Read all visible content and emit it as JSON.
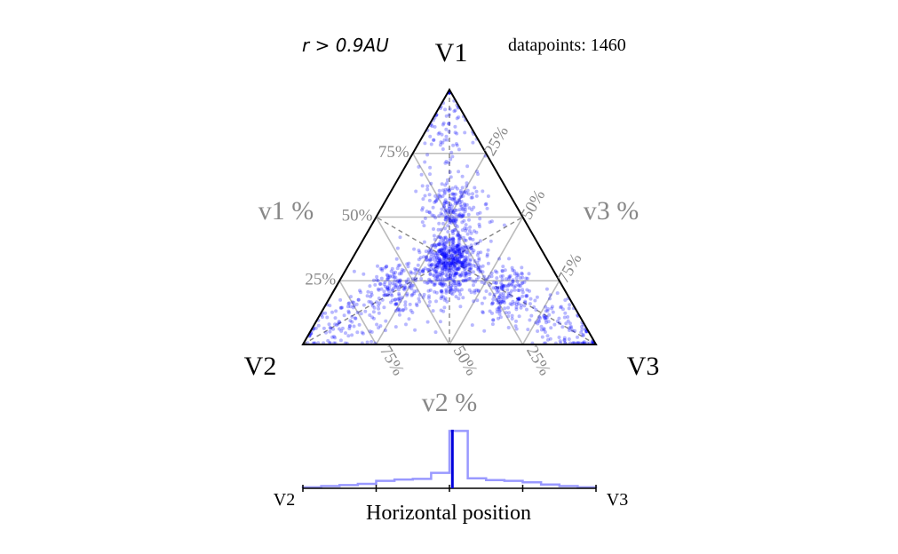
{
  "chart_data": [
    {
      "type": "scatter",
      "subtype": "ternary",
      "annotation_left": "r > 0.9AU",
      "annotation_right": "datapoints: 1460",
      "corner_labels": {
        "top": "V1",
        "left": "V2",
        "right": "V3"
      },
      "axis_labels": {
        "v1": "v1 %",
        "v2": "v2 %",
        "v3": "v3 %"
      },
      "tick_labels": {
        "v1": [
          "25%",
          "50%",
          "75%"
        ],
        "v2": [
          "75%",
          "50%",
          "25%"
        ],
        "v3": [
          "25%",
          "50%",
          "75%"
        ]
      },
      "grid": true,
      "point_color": "#0000ff",
      "n_points": 1460,
      "clusters": [
        {
          "v1": 0.33,
          "v2": 0.33,
          "v3": 0.34,
          "weight": 0.34
        },
        {
          "v1": 0.55,
          "v2": 0.22,
          "v3": 0.23,
          "weight": 0.14
        },
        {
          "v1": 0.85,
          "v2": 0.07,
          "v3": 0.08,
          "weight": 0.05
        },
        {
          "v1": 0.22,
          "v2": 0.58,
          "v3": 0.2,
          "weight": 0.12
        },
        {
          "v1": 0.08,
          "v2": 0.85,
          "v3": 0.07,
          "weight": 0.07
        },
        {
          "v1": 0.2,
          "v2": 0.2,
          "v3": 0.6,
          "weight": 0.14
        },
        {
          "v1": 0.05,
          "v2": 0.07,
          "v3": 0.88,
          "weight": 0.07
        },
        {
          "v1": 0.25,
          "v2": 0.4,
          "v3": 0.35,
          "weight": 0.07
        }
      ]
    },
    {
      "type": "histogram",
      "xlabel": "Horizontal position",
      "x_end_labels": {
        "left": "V2",
        "right": "V3"
      },
      "bin_edges": [
        0.0,
        0.0625,
        0.125,
        0.1875,
        0.25,
        0.3125,
        0.375,
        0.4375,
        0.5,
        0.5625,
        0.625,
        0.6875,
        0.75,
        0.8125,
        0.875,
        0.9375,
        1.0
      ],
      "counts": [
        4,
        9,
        13,
        18,
        30,
        35,
        38,
        62,
        230,
        40,
        33,
        30,
        24,
        15,
        9,
        4
      ],
      "ylim": [
        0,
        235
      ],
      "median_line": 0.51,
      "color": "#9999ff",
      "median_color": "#0000dd"
    }
  ]
}
